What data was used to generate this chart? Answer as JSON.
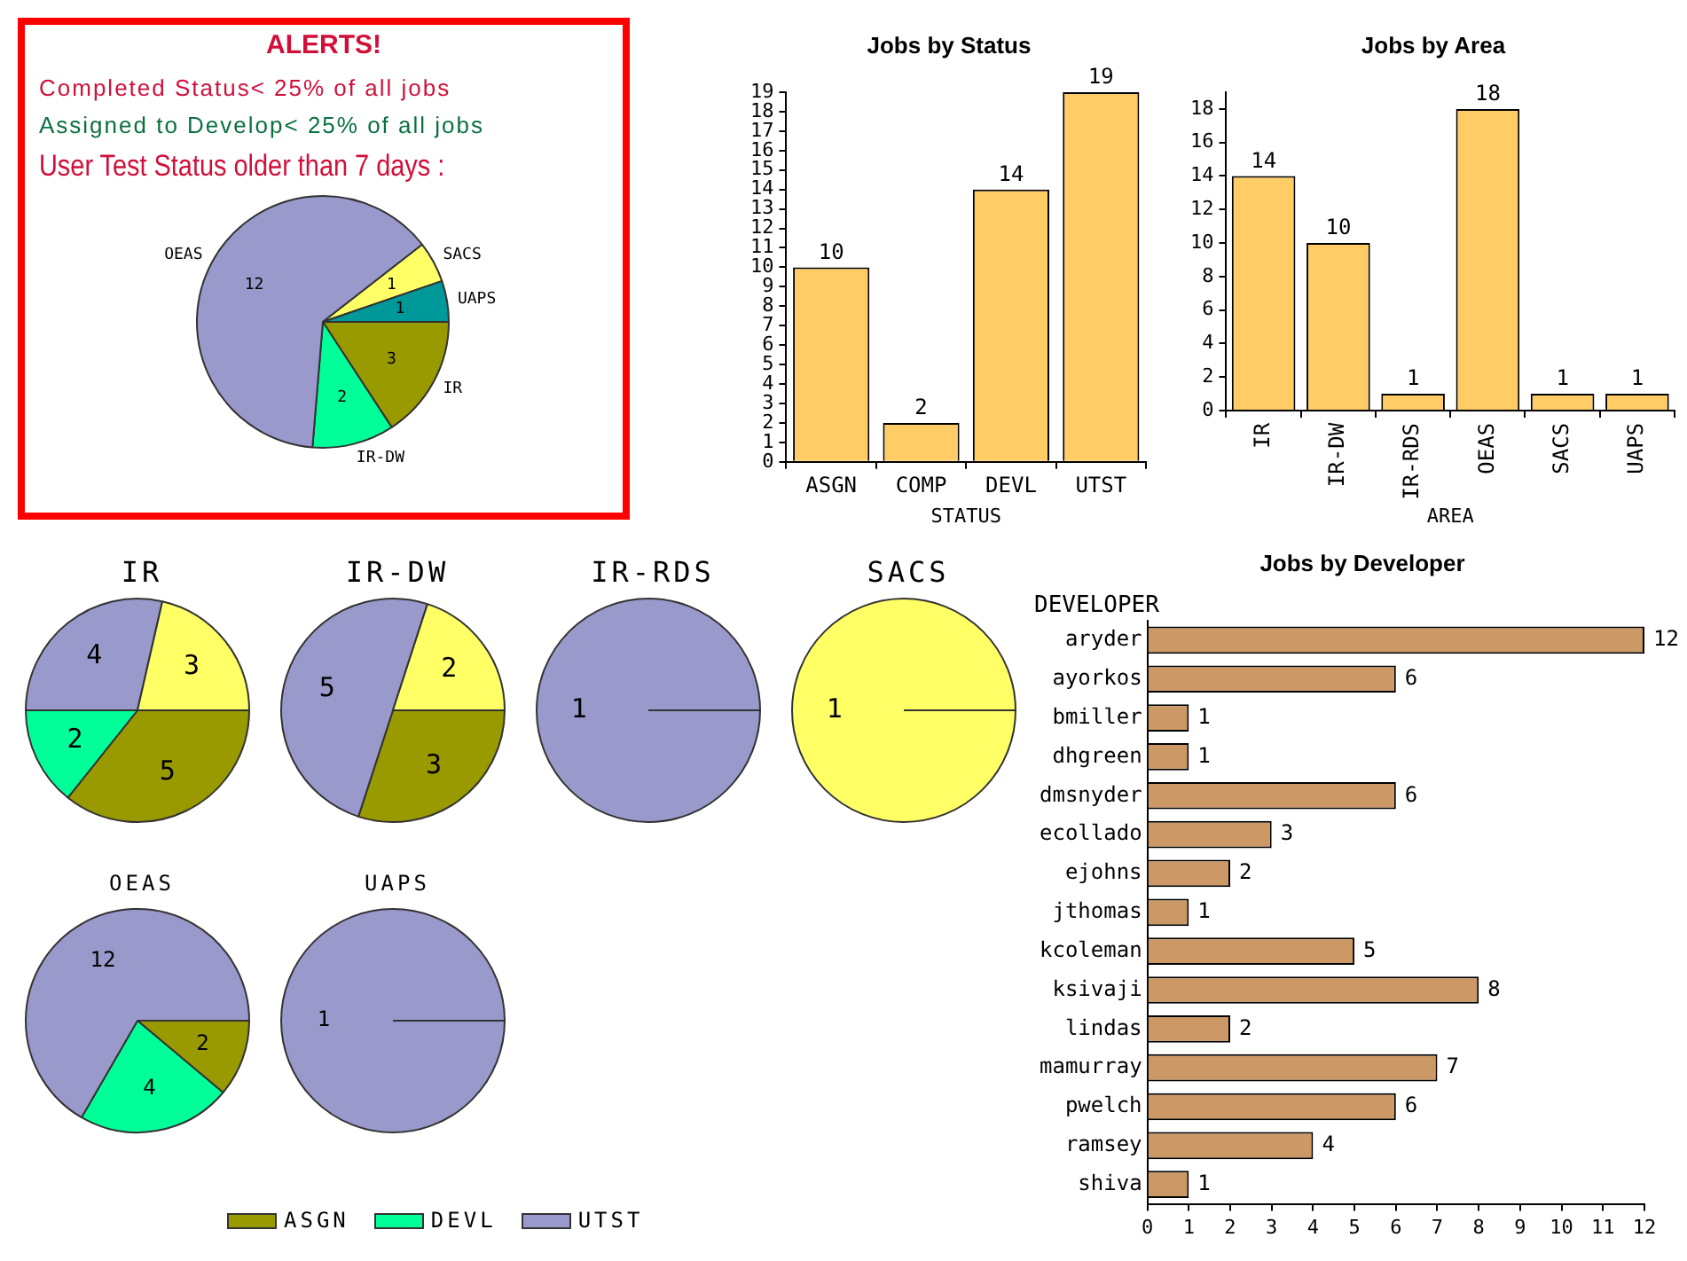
{
  "chart_data": [
    {
      "type": "pie",
      "title": "ALERTS!",
      "annotations": [
        "Completed Status< 25% of all jobs",
        "Assigned to Develop< 25% of all jobs",
        "User Test Status older than 7 days :"
      ],
      "categories": [
        "IR",
        "IR-DW",
        "OEAS",
        "SACS",
        "UAPS"
      ],
      "values": [
        3,
        2,
        12,
        1,
        1
      ],
      "colors": [
        "#999900",
        "#00ff99",
        "#9999cc",
        "#ffff66",
        "#009999"
      ],
      "data_labels": true
    },
    {
      "type": "bar",
      "title": "Jobs by Status",
      "xlabel": "STATUS",
      "categories": [
        "ASGN",
        "COMP",
        "DEVL",
        "UTST"
      ],
      "values": [
        10,
        2,
        14,
        19
      ],
      "color": "#ffcc66",
      "ylim": [
        0,
        19
      ],
      "yticks": [
        0,
        1,
        2,
        3,
        4,
        5,
        6,
        7,
        8,
        9,
        10,
        11,
        12,
        13,
        14,
        15,
        16,
        17,
        18,
        19
      ],
      "data_labels": true
    },
    {
      "type": "bar",
      "title": "Jobs by Area",
      "xlabel": "AREA",
      "categories": [
        "IR",
        "IR-DW",
        "IR-RDS",
        "OEAS",
        "SACS",
        "UAPS"
      ],
      "values": [
        14,
        10,
        1,
        18,
        1,
        1
      ],
      "color": "#ffcc66",
      "ylim": [
        0,
        19
      ],
      "yticks": [
        0,
        2,
        4,
        6,
        8,
        10,
        12,
        14,
        16,
        18
      ],
      "data_labels": true
    },
    {
      "type": "pie",
      "title": "IR",
      "categories": [
        "ASGN",
        "DEVL",
        "UTST",
        null
      ],
      "values": [
        5,
        2,
        4,
        3
      ],
      "colors": [
        "#999900",
        "#00ff99",
        "#9999cc",
        "#ffff66"
      ],
      "data_labels": true,
      "legend": "bottom"
    },
    {
      "type": "pie",
      "title": "IR-DW",
      "categories": [
        null,
        null,
        null
      ],
      "values": [
        3,
        5,
        2
      ],
      "colors": [
        "#999900",
        "#9999cc",
        "#ffff66"
      ],
      "data_labels": true
    },
    {
      "type": "pie",
      "title": "IR-RDS",
      "categories": [
        null
      ],
      "values": [
        1
      ],
      "colors": [
        "#9999cc"
      ],
      "data_labels": true
    },
    {
      "type": "pie",
      "title": "SACS",
      "categories": [
        null
      ],
      "values": [
        1
      ],
      "colors": [
        "#ffff66"
      ],
      "data_labels": true
    },
    {
      "type": "pie",
      "title": "OEAS",
      "categories": [
        null,
        null,
        null
      ],
      "values": [
        2,
        4,
        12
      ],
      "colors": [
        "#999900",
        "#00ff99",
        "#9999cc"
      ],
      "data_labels": true
    },
    {
      "type": "pie",
      "title": "UAPS",
      "categories": [
        null
      ],
      "values": [
        1
      ],
      "colors": [
        "#9999cc"
      ],
      "data_labels": true
    },
    {
      "type": "bar",
      "orientation": "horizontal",
      "title": "Jobs by Developer",
      "ylabel": "DEVELOPER",
      "categories": [
        "aryder",
        "ayorkos",
        "bmiller",
        "dhgreen",
        "dmsnyder",
        "ecollado",
        "ejohns",
        "jthomas",
        "kcoleman",
        "ksivaji",
        "lindas",
        "mamurray",
        "pwelch",
        "ramsey",
        "shiva"
      ],
      "values": [
        12,
        6,
        1,
        1,
        6,
        3,
        2,
        1,
        5,
        8,
        2,
        7,
        6,
        4,
        1
      ],
      "color": "#cc9966",
      "xlim": [
        0,
        12
      ],
      "xticks": [
        0,
        1,
        2,
        3,
        4,
        5,
        6,
        7,
        8,
        9,
        10,
        11,
        12
      ],
      "data_labels": true
    }
  ]
}
